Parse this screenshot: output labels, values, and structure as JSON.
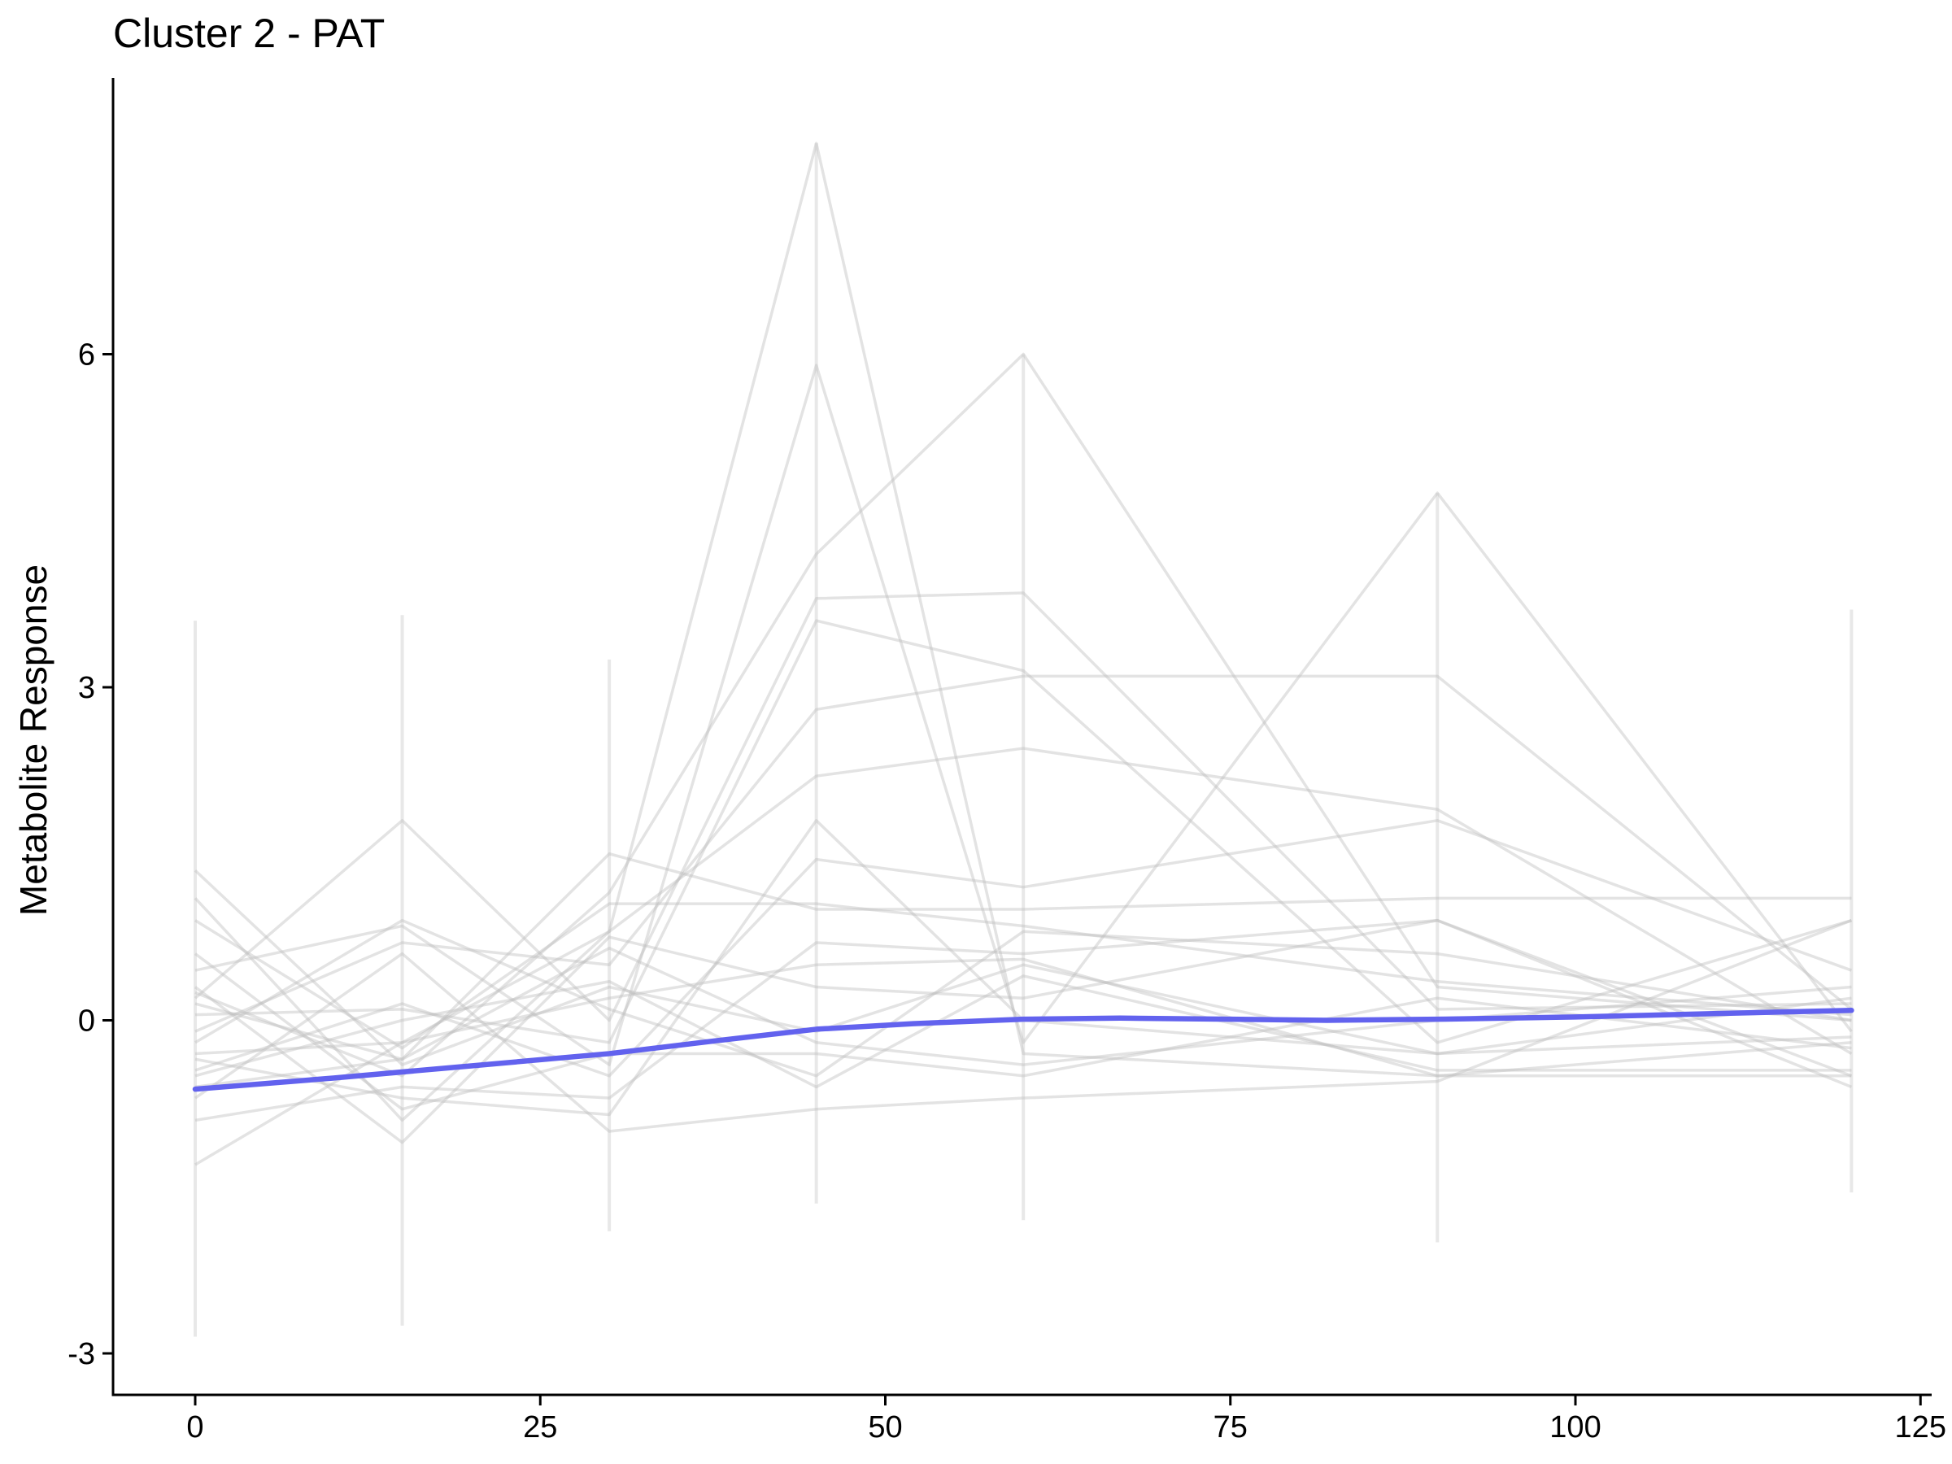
{
  "chart_data": {
    "type": "line",
    "title": "Cluster 2 - PAT",
    "xlabel": "",
    "ylabel": "Metabolite Response",
    "xlim": [
      -6,
      126
    ],
    "ylim": [
      -3.4,
      8.5
    ],
    "x_ticks": [
      0,
      25,
      50,
      75,
      100,
      125
    ],
    "y_ticks": [
      -3,
      0,
      3,
      6
    ],
    "x_tick_labels": [
      "0",
      "25",
      "50",
      "75",
      "100",
      "125"
    ],
    "y_tick_labels": [
      "-3",
      "0",
      "3",
      "6"
    ],
    "grid": false,
    "timepoints": [
      0,
      15,
      30,
      45,
      60,
      90,
      120
    ],
    "trend_line": {
      "color": "#6262EE",
      "x": [
        0,
        10,
        20,
        30,
        38,
        45,
        52,
        60,
        67,
        75,
        82,
        90,
        100,
        110,
        120
      ],
      "y": [
        -0.62,
        -0.52,
        -0.41,
        -0.3,
        -0.18,
        -0.08,
        -0.03,
        0.01,
        0.02,
        0.01,
        0.0,
        0.01,
        0.03,
        0.06,
        0.09
      ]
    },
    "individual_lines_color": "#bdbdbd",
    "individual_series": [
      {
        "values": [
          1.35,
          -0.4,
          0.3,
          -0.1,
          0.5,
          -0.3,
          0.2
        ]
      },
      {
        "values": [
          1.1,
          -0.9,
          0.8,
          7.9,
          -0.3,
          -0.5,
          -0.2
        ]
      },
      {
        "values": [
          0.45,
          0.85,
          -0.4,
          5.9,
          -0.2,
          4.75,
          -0.1
        ]
      },
      {
        "values": [
          0.25,
          -0.5,
          1.15,
          4.2,
          6.0,
          0.3,
          0.0
        ]
      },
      {
        "values": [
          0.2,
          1.8,
          0.0,
          3.8,
          3.85,
          0.1,
          0.15
        ]
      },
      {
        "values": [
          0.05,
          0.1,
          -0.2,
          3.6,
          3.15,
          -0.2,
          0.9
        ]
      },
      {
        "values": [
          -0.1,
          0.7,
          0.5,
          2.8,
          3.1,
          3.1,
          0.1
        ]
      },
      {
        "values": [
          -0.3,
          -0.2,
          0.8,
          2.2,
          2.45,
          1.9,
          -0.3
        ]
      },
      {
        "values": [
          -0.45,
          0.15,
          -0.5,
          1.45,
          1.2,
          1.8,
          0.45
        ]
      },
      {
        "values": [
          -0.6,
          -0.35,
          1.5,
          1.0,
          1.0,
          1.1,
          1.1
        ]
      },
      {
        "values": [
          -0.9,
          -0.6,
          -0.7,
          0.7,
          0.6,
          0.9,
          -0.5
        ]
      },
      {
        "values": [
          -1.3,
          -0.2,
          0.2,
          0.5,
          0.55,
          -0.5,
          -0.5
        ]
      },
      {
        "values": [
          -0.7,
          0.6,
          -1.0,
          -0.8,
          -0.7,
          -0.55,
          0.9
        ]
      },
      {
        "values": [
          0.3,
          -1.1,
          0.75,
          0.3,
          0.2,
          0.9,
          -0.6
        ]
      },
      {
        "values": [
          -0.2,
          0.9,
          0.1,
          -0.5,
          0.8,
          0.6,
          0.0
        ]
      },
      {
        "values": [
          0.6,
          -0.8,
          -0.3,
          -0.3,
          -0.5,
          0.2,
          -0.25
        ]
      },
      {
        "values": [
          -0.5,
          0.0,
          0.35,
          -0.6,
          0.4,
          -0.45,
          -0.45
        ]
      },
      {
        "values": [
          0.15,
          -0.35,
          0.65,
          -0.2,
          -0.4,
          0.0,
          0.3
        ]
      },
      {
        "values": [
          -0.35,
          -0.7,
          -0.85,
          1.8,
          0.0,
          -0.3,
          -0.15
        ]
      },
      {
        "values": [
          0.9,
          -0.25,
          1.05,
          1.05,
          0.85,
          0.35,
          0.05
        ]
      }
    ],
    "timepoint_ranges": [
      {
        "x": 0,
        "min": -2.85,
        "max": 3.6
      },
      {
        "x": 15,
        "min": -2.75,
        "max": 3.65
      },
      {
        "x": 30,
        "min": -1.9,
        "max": 3.25
      },
      {
        "x": 45,
        "min": -1.65,
        "max": 7.9
      },
      {
        "x": 60,
        "min": -1.8,
        "max": 6.0
      },
      {
        "x": 90,
        "min": -2.0,
        "max": 4.75
      },
      {
        "x": 120,
        "min": -1.55,
        "max": 3.7
      }
    ]
  }
}
